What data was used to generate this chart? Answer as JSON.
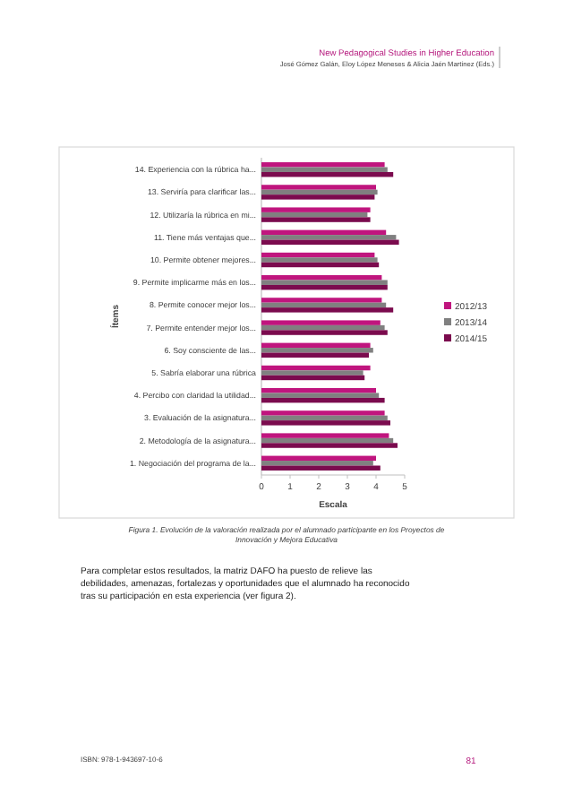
{
  "chart_data": {
    "type": "bar",
    "orientation": "horizontal",
    "xlabel": "Escala",
    "ylabel": "Ítems",
    "categories": [
      "14. Experiencia con la rúbrica ha...",
      "13. Serviría para clarificar las...",
      "12. Utilizaría la rúbrica en mi...",
      "11. Tiene más ventajas que...",
      "10. Permite obtener mejores...",
      "9. Permite implicarme más en los...",
      "8. Permite conocer mejor los...",
      "7. Permite entender mejor los...",
      "6. Soy consciente de las...",
      "5. Sabría elaborar una rúbrica",
      "4. Percibo con claridad la utilidad...",
      "3. Evaluación de la asignatura...",
      "2. Metodología de la asignatura...",
      "1. Negociación del programa de la..."
    ],
    "series": [
      {
        "name": "2012/13",
        "color": "#c0157e",
        "values": [
          4.3,
          4.0,
          3.8,
          4.35,
          3.95,
          4.2,
          4.2,
          4.15,
          3.8,
          3.8,
          4.0,
          4.3,
          4.45,
          4.0
        ]
      },
      {
        "name": "2013/14",
        "color": "#808080",
        "values": [
          4.4,
          4.05,
          3.7,
          4.7,
          4.05,
          4.4,
          4.35,
          4.3,
          3.9,
          3.55,
          4.1,
          4.4,
          4.6,
          3.9
        ]
      },
      {
        "name": "2014/15",
        "color": "#7b0b4e",
        "values": [
          4.6,
          3.95,
          3.8,
          4.8,
          4.1,
          4.4,
          4.6,
          4.4,
          3.75,
          3.6,
          4.3,
          4.5,
          4.75,
          4.15
        ]
      }
    ],
    "xlim": [
      0,
      5
    ],
    "xticks": [
      0,
      1,
      2,
      3,
      4,
      5
    ],
    "legend": "right",
    "annotations": [
      "New Pedagogical Studies in Higher Education",
      "José Gómez Galán, Eloy López Meneses & Alicia Jaén Martínez (Eds.)",
      "Figura 1. Evolución de la valoración realizada por el alumnado participante en los Proyectos de Innovación y Mejora Educativa",
      "Para completar estos resultados, la matriz DAFO ha puesto de relieve las debilidades, amenazas, fortalezas y oportunidades que el alumnado ha reconocido tras su participación en esta experiencia (ver figura 2).",
      "ISBN: 978-1-943697-10-6",
      "81"
    ]
  }
}
